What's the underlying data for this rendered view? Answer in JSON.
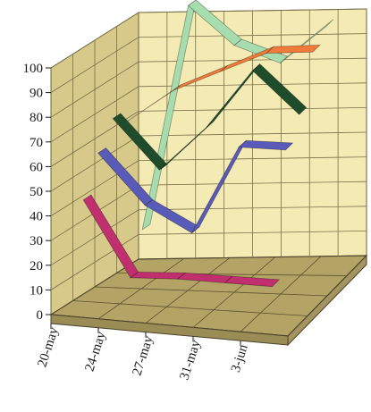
{
  "chart_data": {
    "type": "line",
    "style": "3d-ribbon",
    "categories": [
      "20-may",
      "24-may",
      "27-may",
      "31-may",
      "3-jun"
    ],
    "ylim": [
      0,
      100
    ],
    "yticks": [
      0,
      10,
      20,
      30,
      40,
      50,
      60,
      70,
      80,
      90,
      100
    ],
    "grid": true,
    "legend": "none",
    "series": [
      {
        "color": "#c0306e",
        "values": [
          45,
          15,
          16,
          16,
          16
        ]
      },
      {
        "color": "#5a5ab8",
        "values": [
          60,
          40,
          30,
          66,
          66
        ]
      },
      {
        "color": "#1f4d2c",
        "values": [
          70,
          50,
          68,
          92,
          75
        ]
      },
      {
        "color": "#f07a3a",
        "values": [
          65,
          78,
          86,
          94,
          95
        ]
      },
      {
        "color": "#a6dcae",
        "values": [
          17,
          108,
          92,
          85,
          100
        ]
      }
    ],
    "colors": {
      "back_wall": "#f3eab4",
      "side_wall": "#d6c98a",
      "floor": "#b3a466",
      "grid_line": "#7a6e48"
    }
  }
}
